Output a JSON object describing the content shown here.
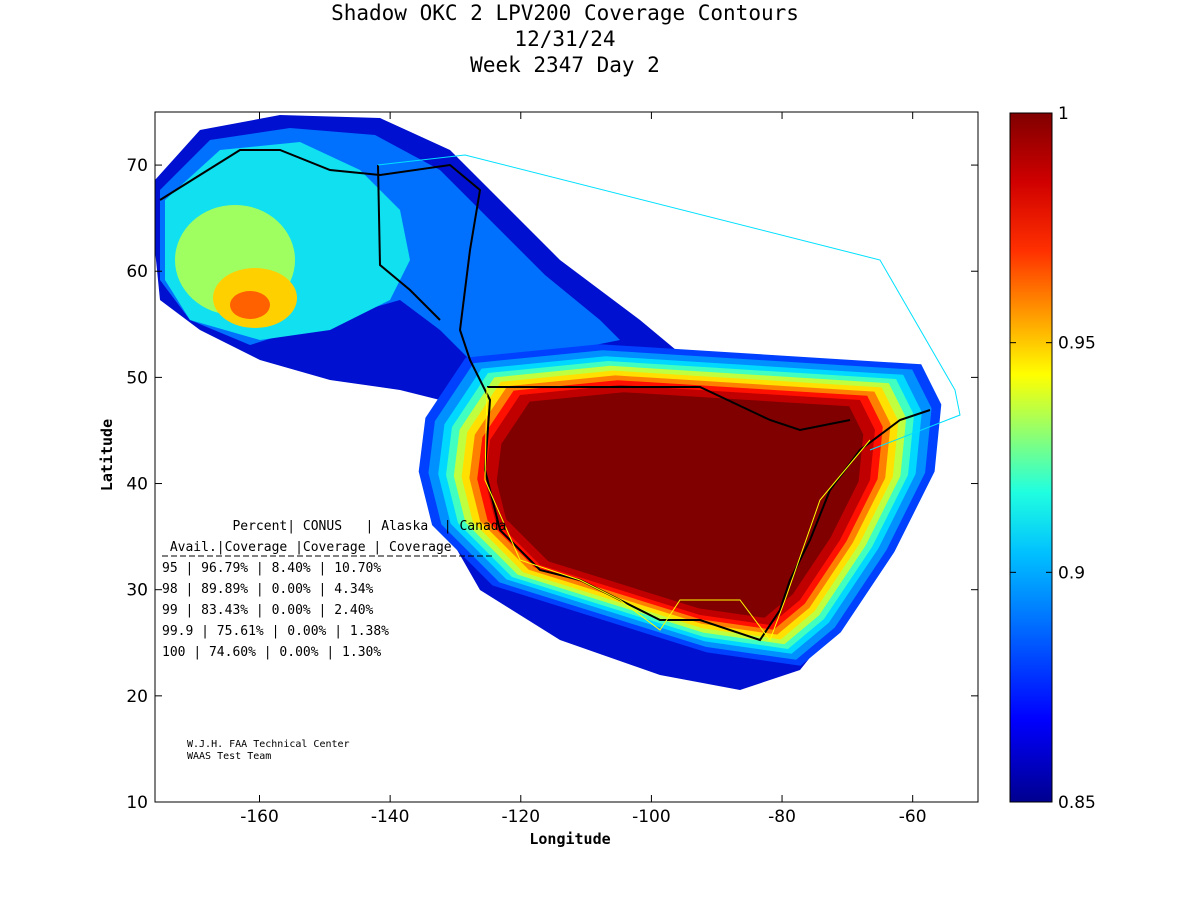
{
  "title": {
    "line1": "Shadow OKC 2 LPV200 Coverage Contours",
    "line2": "12/31/24",
    "line3": "Week 2347 Day 2"
  },
  "chart_data": {
    "type": "heatmap",
    "title": "Shadow OKC 2 LPV200 Coverage Contours",
    "xlabel": "Longitude",
    "ylabel": "Latitude",
    "xlim": [
      -176,
      -50
    ],
    "ylim": [
      10,
      75
    ],
    "x_ticks": [
      "-160",
      "-140",
      "-120",
      "-100",
      "-80",
      "-60"
    ],
    "y_ticks": [
      "10",
      "20",
      "30",
      "40",
      "50",
      "60",
      "70"
    ],
    "colorbar": {
      "range": [
        0.85,
        1
      ],
      "ticks": [
        "0.85",
        "0.9",
        "0.95",
        "1"
      ],
      "colormap": "jet"
    },
    "table": {
      "header1": [
        "Percent",
        "CONUS",
        "Alaska",
        "Canada"
      ],
      "header2": [
        "Avail.",
        "Coverage",
        "Coverage",
        "Coverage"
      ],
      "rows": [
        [
          "95",
          "96.79%",
          "8.40%",
          "10.70%"
        ],
        [
          "98",
          "89.89%",
          "0.00%",
          "4.34%"
        ],
        [
          "99",
          "83.43%",
          "0.00%",
          "2.40%"
        ],
        [
          "99.9",
          "75.61%",
          "0.00%",
          "1.38%"
        ],
        [
          "100",
          "74.60%",
          "0.00%",
          "1.30%"
        ]
      ]
    }
  },
  "credits": {
    "line1": "W.J.H. FAA Technical Center",
    "line2": "WAAS Test Team"
  }
}
